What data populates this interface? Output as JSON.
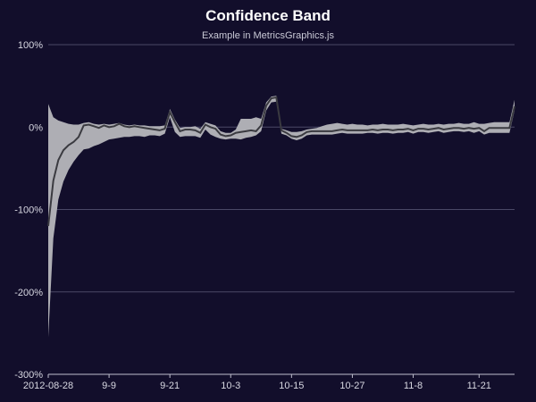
{
  "colors": {
    "background": "#120e2b",
    "band": "#aeaeb4",
    "line": "#3a3a40",
    "grid": "#4a4866",
    "axis": "#bdbdcc"
  },
  "chart_data": {
    "type": "area",
    "title": "Confidence Band",
    "subtitle": "Example in MetricsGraphics.js",
    "xlabel": "",
    "ylabel": "",
    "y_tick_labels": [
      "100%",
      "0%",
      "-100%",
      "-200%",
      "-300%"
    ],
    "y_tick_values": [
      100,
      0,
      -100,
      -200,
      -300
    ],
    "x_tick_labels": [
      "2012-08-28",
      "9-9",
      "9-21",
      "10-3",
      "10-15",
      "10-27",
      "11-8",
      "11-21"
    ],
    "x_tick_dates": [
      "2012-08-28",
      "2012-09-09",
      "2012-09-21",
      "2012-10-03",
      "2012-10-15",
      "2012-10-27",
      "2012-11-08",
      "2012-11-21"
    ],
    "ylim": [
      -300,
      100
    ],
    "xlim": [
      "2012-08-28",
      "2012-11-28"
    ],
    "grid": "horizontal",
    "series": [
      {
        "x": [
          "2012-08-28",
          "2012-08-29",
          "2012-08-30",
          "2012-08-31",
          "2012-09-01",
          "2012-09-02",
          "2012-09-03",
          "2012-09-04",
          "2012-09-05",
          "2012-09-06",
          "2012-09-07",
          "2012-09-08",
          "2012-09-09",
          "2012-09-10",
          "2012-09-11",
          "2012-09-12",
          "2012-09-13",
          "2012-09-14",
          "2012-09-15",
          "2012-09-16",
          "2012-09-17",
          "2012-09-18",
          "2012-09-19",
          "2012-09-20",
          "2012-09-21",
          "2012-09-22",
          "2012-09-23",
          "2012-09-24",
          "2012-09-25",
          "2012-09-26",
          "2012-09-27",
          "2012-09-28",
          "2012-09-29",
          "2012-09-30",
          "2012-10-01",
          "2012-10-02",
          "2012-10-03",
          "2012-10-04",
          "2012-10-05",
          "2012-10-06",
          "2012-10-07",
          "2012-10-08",
          "2012-10-09",
          "2012-10-10",
          "2012-10-11",
          "2012-10-12",
          "2012-10-13",
          "2012-10-14",
          "2012-10-15",
          "2012-10-16",
          "2012-10-17",
          "2012-10-18",
          "2012-10-19",
          "2012-10-20",
          "2012-10-21",
          "2012-10-22",
          "2012-10-23",
          "2012-10-24",
          "2012-10-25",
          "2012-10-26",
          "2012-10-27",
          "2012-10-28",
          "2012-10-29",
          "2012-10-30",
          "2012-10-31",
          "2012-11-01",
          "2012-11-02",
          "2012-11-03",
          "2012-11-04",
          "2012-11-05",
          "2012-11-06",
          "2012-11-07",
          "2012-11-08",
          "2012-11-09",
          "2012-11-10",
          "2012-11-11",
          "2012-11-12",
          "2012-11-13",
          "2012-11-14",
          "2012-11-15",
          "2012-11-16",
          "2012-11-17",
          "2012-11-18",
          "2012-11-19",
          "2012-11-20",
          "2012-11-21",
          "2012-11-22",
          "2012-11-23",
          "2012-11-24",
          "2012-11-25",
          "2012-11-26",
          "2012-11-27",
          "2012-11-28"
        ],
        "y": [
          -120,
          -65,
          -40,
          -28,
          -22,
          -18,
          -12,
          2,
          3,
          1,
          -1,
          2,
          0,
          1,
          4,
          1,
          0,
          1,
          0,
          -1,
          -2,
          -3,
          -4,
          -2,
          18,
          6,
          -5,
          -3,
          -3,
          -4,
          -7,
          3,
          0,
          -2,
          -9,
          -11,
          -10,
          -7,
          -6,
          -5,
          -4,
          -5,
          2,
          26,
          35,
          36,
          -4,
          -7,
          -11,
          -12,
          -10,
          -6,
          -5,
          -5,
          -5,
          -5,
          -5,
          -4,
          -3,
          -4,
          -4,
          -4,
          -4,
          -4,
          -3,
          -4,
          -3,
          -3,
          -4,
          -3,
          -3,
          -2,
          -4,
          -2,
          -2,
          -3,
          -2,
          -1,
          -3,
          -2,
          -1,
          -1,
          -2,
          -1,
          -2,
          -1,
          -5,
          -1,
          -1,
          -1,
          -1,
          -1,
          25
        ],
        "y_lower": [
          -255,
          -135,
          -88,
          -66,
          -52,
          -42,
          -34,
          -27,
          -26,
          -23,
          -21,
          -18,
          -15,
          -14,
          -13,
          -12,
          -12,
          -11,
          -11,
          -12,
          -10,
          -10,
          -11,
          -8,
          12,
          -6,
          -12,
          -11,
          -11,
          -11,
          -13,
          -3,
          -9,
          -12,
          -14,
          -15,
          -14,
          -14,
          -15,
          -13,
          -12,
          -10,
          -5,
          20,
          30,
          31,
          -8,
          -10,
          -14,
          -16,
          -14,
          -10,
          -9,
          -9,
          -9,
          -9,
          -9,
          -8,
          -7,
          -8,
          -8,
          -8,
          -8,
          -7,
          -7,
          -8,
          -7,
          -7,
          -8,
          -7,
          -7,
          -6,
          -8,
          -6,
          -6,
          -7,
          -6,
          -5,
          -7,
          -6,
          -5,
          -5,
          -6,
          -5,
          -7,
          -5,
          -9,
          -7,
          -7,
          -7,
          -7,
          -7,
          20
        ],
        "y_upper": [
          28,
          12,
          8,
          6,
          4,
          3,
          3,
          5,
          6,
          4,
          3,
          4,
          3,
          4,
          5,
          3,
          2,
          3,
          2,
          2,
          1,
          1,
          1,
          2,
          22,
          9,
          -1,
          0,
          0,
          1,
          -2,
          6,
          4,
          2,
          -5,
          -7,
          -7,
          -3,
          10,
          10,
          10,
          12,
          10,
          30,
          37,
          38,
          -2,
          -4,
          -6,
          -6,
          -5,
          -3,
          -2,
          -1,
          1,
          3,
          4,
          5,
          4,
          3,
          4,
          3,
          3,
          2,
          3,
          3,
          4,
          3,
          3,
          3,
          4,
          3,
          2,
          3,
          4,
          3,
          3,
          4,
          3,
          4,
          4,
          5,
          4,
          4,
          6,
          4,
          4,
          5,
          6,
          6,
          6,
          6,
          33
        ]
      }
    ]
  }
}
